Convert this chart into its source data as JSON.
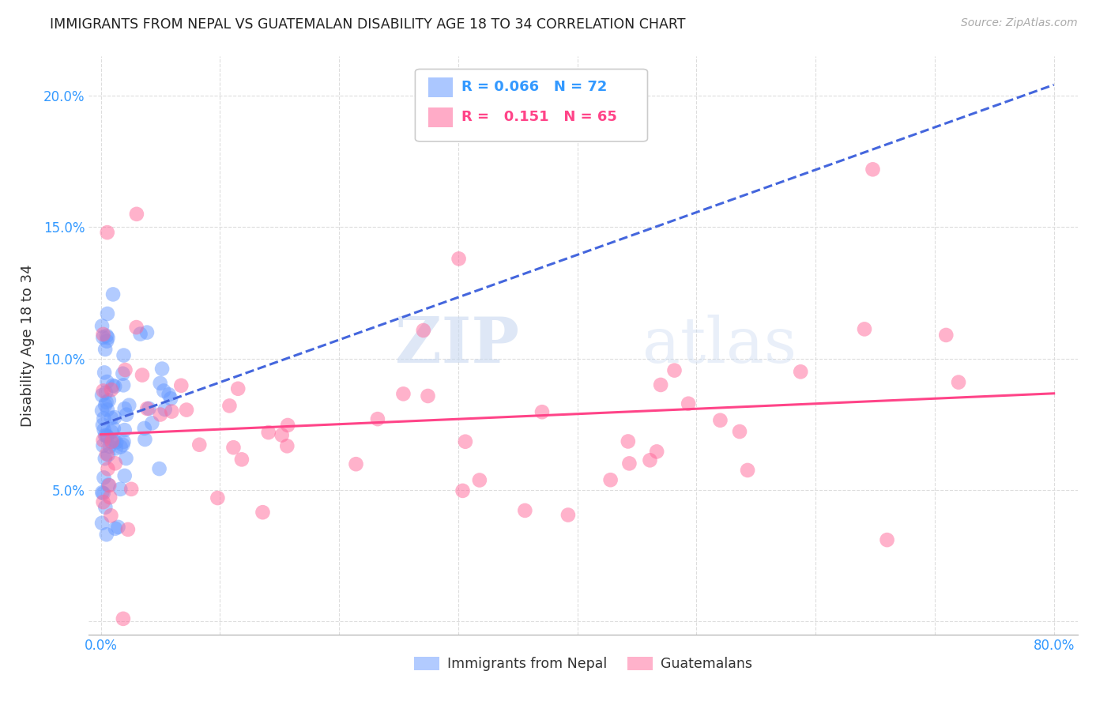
{
  "title": "IMMIGRANTS FROM NEPAL VS GUATEMALAN DISABILITY AGE 18 TO 34 CORRELATION CHART",
  "source": "Source: ZipAtlas.com",
  "ylabel": "Disability Age 18 to 34",
  "xlabel": "",
  "xlim": [
    -0.01,
    0.82
  ],
  "ylim": [
    -0.005,
    0.215
  ],
  "xtick_positions": [
    0.0,
    0.1,
    0.2,
    0.3,
    0.4,
    0.5,
    0.6,
    0.7,
    0.8
  ],
  "xticklabels": [
    "0.0%",
    "",
    "",
    "",
    "",
    "",
    "",
    "",
    "80.0%"
  ],
  "ytick_positions": [
    0.0,
    0.05,
    0.1,
    0.15,
    0.2
  ],
  "yticklabels": [
    "",
    "5.0%",
    "10.0%",
    "15.0%",
    "20.0%"
  ],
  "nepal_color": "#6699ff",
  "guatemalan_color": "#ff6699",
  "nepal_R": 0.066,
  "nepal_N": 72,
  "guatemalan_R": 0.151,
  "guatemalan_N": 65,
  "watermark_zip": "ZIP",
  "watermark_atlas": "atlas",
  "background_color": "#ffffff",
  "grid_color": "#dddddd",
  "title_color": "#222222",
  "axis_tick_color": "#3399ff",
  "nepal_line_color": "#4466dd",
  "guatemalan_line_color": "#ff4488",
  "legend_R_color": "#3399ff",
  "legend_G_color": "#ff4488"
}
